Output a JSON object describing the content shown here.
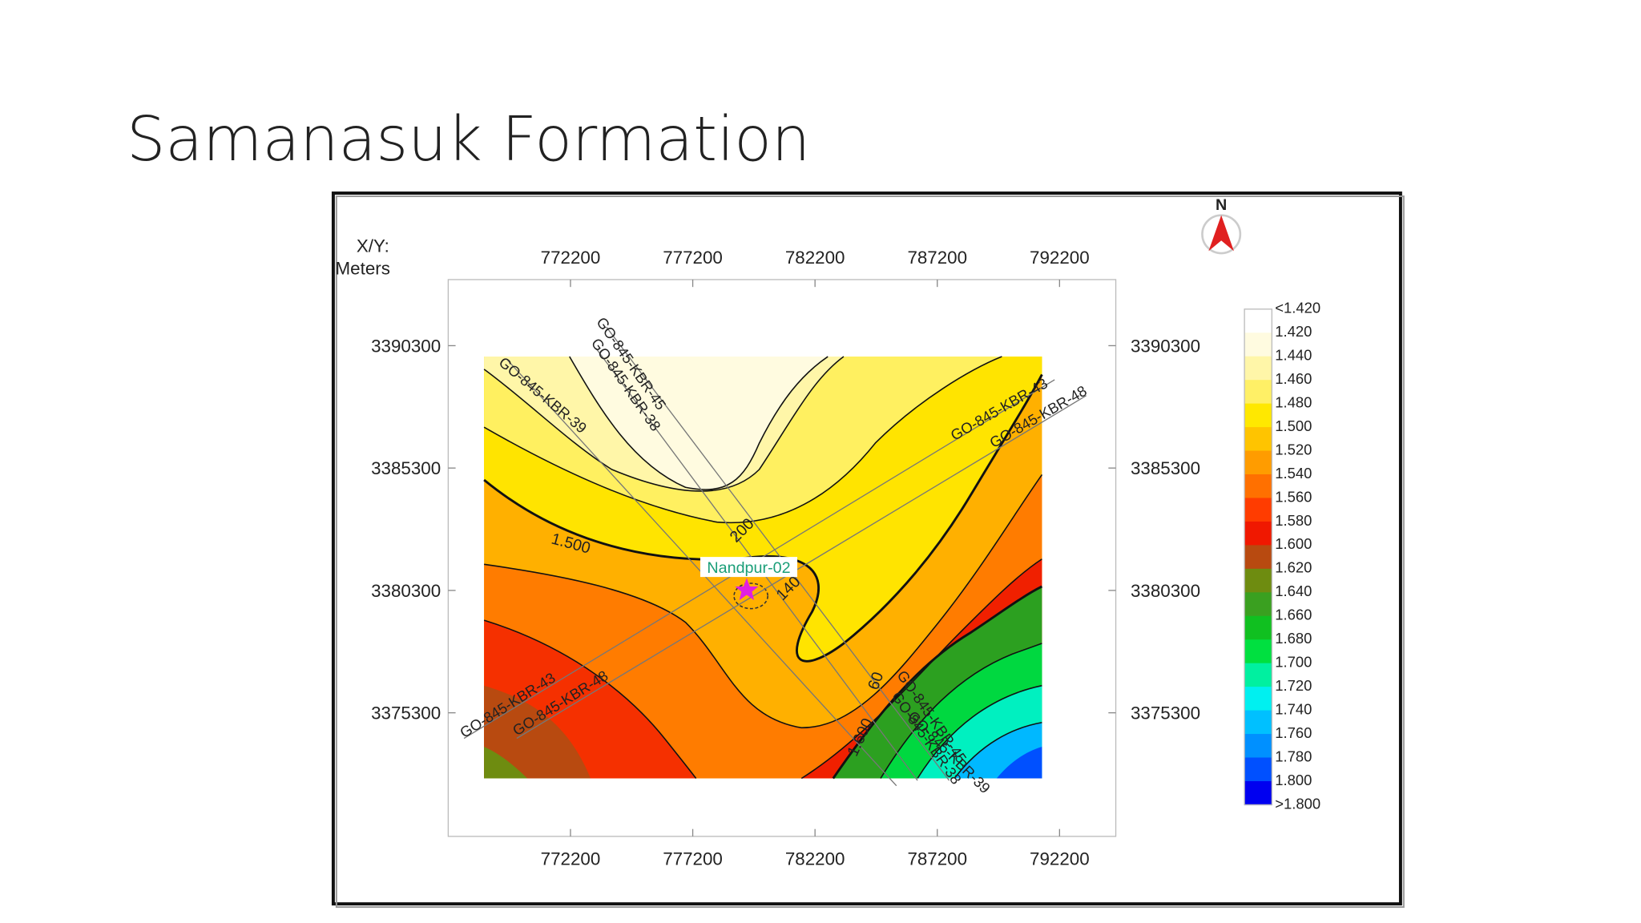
{
  "slide": {
    "title": "Samanasuk Formation"
  },
  "map": {
    "axis_label_1": "X/Y:",
    "axis_label_2": "Meters",
    "north": "N",
    "xlim": [
      767200,
      794500
    ],
    "ylim": [
      3370250,
      3393000
    ],
    "xticks": [
      772200,
      777200,
      782200,
      787200,
      792200
    ],
    "yticks": [
      3390300,
      3385300,
      3380300,
      3375300
    ],
    "legend_labels": [
      "<1.420",
      "1.420",
      "1.440",
      "1.460",
      "1.480",
      "1.500",
      "1.520",
      "1.540",
      "1.560",
      "1.580",
      "1.600",
      "1.620",
      "1.640",
      "1.660",
      "1.680",
      "1.700",
      "1.720",
      "1.740",
      "1.760",
      "1.780",
      "1.800",
      ">1.800"
    ],
    "legend_colors": [
      "#ffffff",
      "#fffbe0",
      "#fff6a8",
      "#fff066",
      "#ffe800",
      "#ffc400",
      "#ff9c00",
      "#ff7000",
      "#ff3c00",
      "#f01800",
      "#b84a10",
      "#6e8c10",
      "#3aa020",
      "#10c020",
      "#00e040",
      "#00f0a0",
      "#00f0f0",
      "#00c0ff",
      "#0090ff",
      "#0050ff",
      "#0000f0"
    ],
    "well": "Nandpur-02",
    "contour_labels": [
      "1.500",
      "200",
      "140",
      "1.600",
      "60"
    ],
    "line_labels": [
      "GO-845-KBR-45",
      "GO-845-KBR-38",
      "GO-845-KBR-39",
      "GO-845-KBR-43",
      "GO-845-KBR-48",
      "GO-845-KBR-43",
      "GO-845-KBR-48",
      "GO-845-KBR-45",
      "GO-845-KBR-38",
      "GO-845-KBR-39"
    ]
  }
}
